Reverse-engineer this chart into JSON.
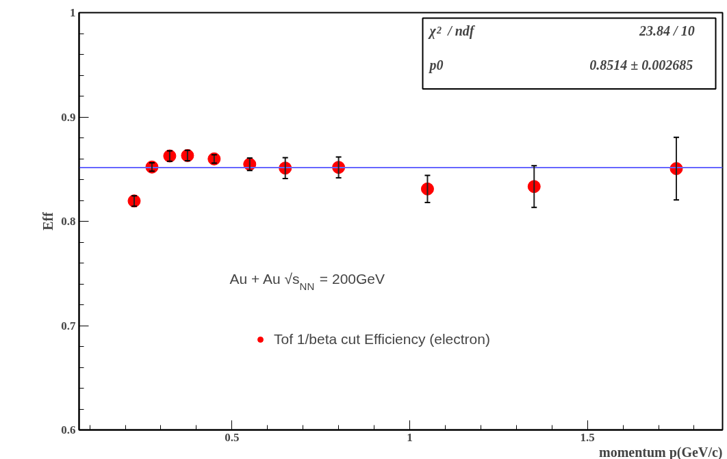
{
  "chart_data": {
    "type": "scatter",
    "xlabel": "momentum p(GeV/c)",
    "ylabel": "Eff",
    "x": [
      0.225,
      0.275,
      0.325,
      0.375,
      0.45,
      0.55,
      0.65,
      0.8,
      1.05,
      1.35,
      1.75
    ],
    "series": [
      {
        "name": "Tof 1/beta cut Efficiency (electron)",
        "color": "#ff0000",
        "values": [
          0.8195,
          0.852,
          0.8626,
          0.863,
          0.8598,
          0.8547,
          0.851,
          0.8517,
          0.831,
          0.8333,
          0.8505
        ],
        "errors": [
          0.005,
          0.004,
          0.005,
          0.005,
          0.004,
          0.006,
          0.01,
          0.01,
          0.013,
          0.02,
          0.03
        ]
      },
      {
        "type": "line",
        "marker": "none",
        "color": "#6666ff",
        "x": [
          0.07,
          1.88
        ],
        "values": [
          0.8514,
          0.8514
        ]
      }
    ],
    "xlim": [
      0.07,
      1.88
    ],
    "ylim": [
      0.6,
      1.0
    ],
    "xticks": [
      0.5,
      1,
      1.5
    ],
    "yticks": [
      0.6,
      0.7,
      0.8,
      0.9,
      1
    ],
    "marker": "circle",
    "legend": "bottom",
    "grid": false,
    "annotations": [
      "χ$^{2}$ / ndf",
      "23.84 / 10",
      "p0",
      "0.8514 ± 0.002685",
      "Au + Au √s$_{NN}$ = 200GeV"
    ]
  }
}
